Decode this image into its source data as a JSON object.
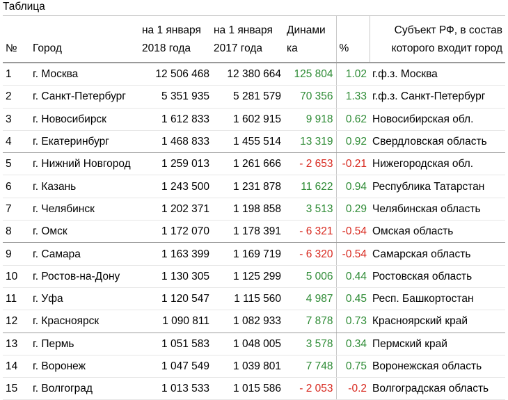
{
  "caption": "Таблица",
  "headers": {
    "num": "№",
    "city": "Город",
    "pop2018": "на 1 января 2018 года",
    "pop2017": "на 1 января 2017 года",
    "dynamics": "Динами ка",
    "percent": "%",
    "region": "Субъект РФ, в состав которого входит город"
  },
  "colors": {
    "positive": "#2e8b35",
    "negative": "#d8281e"
  },
  "rows": [
    {
      "num": "1",
      "city": "г. Москва",
      "pop2018": "12 506 468",
      "pop2017": "12 380 664",
      "dynamics": "125 804",
      "percent": "1.02",
      "region": "г.ф.з. Москва",
      "sign": "pos"
    },
    {
      "num": "2",
      "city": "г. Санкт-Петербург",
      "pop2018": "5 351 935",
      "pop2017": "5 281 579",
      "dynamics": "70 356",
      "percent": "1.33",
      "region": "г.ф.з. Санкт-Петербург",
      "sign": "pos"
    },
    {
      "num": "3",
      "city": "г. Новосибирск",
      "pop2018": "1 612 833",
      "pop2017": "1 602 915",
      "dynamics": "9 918",
      "percent": "0.62",
      "region": "Новосибирская обл.",
      "sign": "pos"
    },
    {
      "num": "4",
      "city": "г. Екатеринбург",
      "pop2018": "1 468 833",
      "pop2017": "1 455 514",
      "dynamics": "13 319",
      "percent": "0.92",
      "region": "Свердловская область",
      "sign": "pos"
    },
    {
      "num": "5",
      "city": "г. Нижний Новгород",
      "pop2018": "1 259 013",
      "pop2017": "1 261 666",
      "dynamics": "- 2 653",
      "percent": "-0.21",
      "region": "Нижегородская обл.",
      "sign": "neg"
    },
    {
      "num": "6",
      "city": "г. Казань",
      "pop2018": "1 243 500",
      "pop2017": "1 231 878",
      "dynamics": "11 622",
      "percent": "0.94",
      "region": "Республика Татарстан",
      "sign": "pos"
    },
    {
      "num": "7",
      "city": "г. Челябинск",
      "pop2018": "1 202 371",
      "pop2017": "1 198 858",
      "dynamics": "3 513",
      "percent": "0.29",
      "region": "Челябинская область",
      "sign": "pos"
    },
    {
      "num": "8",
      "city": "г. Омск",
      "pop2018": "1 172 070",
      "pop2017": "1 178 391",
      "dynamics": "- 6 321",
      "percent": "-0.54",
      "region": "Омская область",
      "sign": "neg"
    },
    {
      "num": "9",
      "city": "г. Самара",
      "pop2018": "1 163 399",
      "pop2017": "1 169 719",
      "dynamics": "- 6 320",
      "percent": "-0.54",
      "region": "Самарская область",
      "sign": "neg"
    },
    {
      "num": "10",
      "city": "г. Ростов-на-Дону",
      "pop2018": "1 130 305",
      "pop2017": "1 125 299",
      "dynamics": "5 006",
      "percent": "0.44",
      "region": "Ростовская область",
      "sign": "pos"
    },
    {
      "num": "11",
      "city": "г. Уфа",
      "pop2018": "1 120 547",
      "pop2017": "1 115 560",
      "dynamics": "4 987",
      "percent": "0.45",
      "region": "Респ. Башкортостан",
      "sign": "pos"
    },
    {
      "num": "12",
      "city": "г. Красноярск",
      "pop2018": "1 090 811",
      "pop2017": "1 082 933",
      "dynamics": "7 878",
      "percent": "0.73",
      "region": "Красноярский край",
      "sign": "pos"
    },
    {
      "num": "13",
      "city": "г. Пермь",
      "pop2018": "1 051 583",
      "pop2017": "1 048 005",
      "dynamics": "3 578",
      "percent": "0.34",
      "region": "Пермский край",
      "sign": "pos"
    },
    {
      "num": "14",
      "city": "г. Воронеж",
      "pop2018": "1 047 549",
      "pop2017": "1 039 801",
      "dynamics": "7 748",
      "percent": "0.75",
      "region": "Воронежская область",
      "sign": "pos"
    },
    {
      "num": "15",
      "city": "г. Волгоград",
      "pop2018": "1 013 533",
      "pop2017": "1 015 586",
      "dynamics": "- 2 053",
      "percent": "-0.2",
      "region": "Волгоградская область",
      "sign": "neg"
    }
  ]
}
